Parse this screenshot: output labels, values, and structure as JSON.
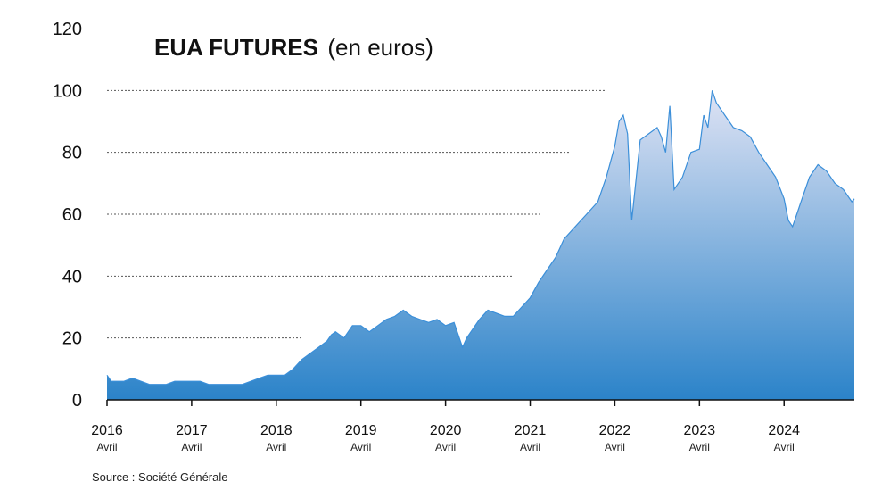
{
  "chart_data": {
    "type": "area",
    "title": "EUA FUTURES",
    "subtitle": "(en euros)",
    "source": "Source : Société Générale",
    "ylim": [
      0,
      120
    ],
    "xlim": [
      2016.0,
      2024.83
    ],
    "y_ticks": [
      "0",
      "20",
      "40",
      "60",
      "80",
      "100",
      "120"
    ],
    "x_ticks": [
      {
        "value": 2016,
        "label": "2016",
        "sublabel": "Avril"
      },
      {
        "value": 2017,
        "label": "2017",
        "sublabel": "Avril"
      },
      {
        "value": 2018,
        "label": "2018",
        "sublabel": "Avril"
      },
      {
        "value": 2019,
        "label": "2019",
        "sublabel": "Avril"
      },
      {
        "value": 2020,
        "label": "2020",
        "sublabel": "Avril"
      },
      {
        "value": 2021,
        "label": "2021",
        "sublabel": "Avril"
      },
      {
        "value": 2022,
        "label": "2022",
        "sublabel": "Avril"
      },
      {
        "value": 2023,
        "label": "2023",
        "sublabel": "Avril"
      },
      {
        "value": 2024,
        "label": "2024",
        "sublabel": "Avril"
      }
    ],
    "grid": "dotted horizontal lines, partial",
    "colors": {
      "line": "#3b8fd9",
      "fill_top": "#dfe3f4",
      "fill_bottom": "#2b83c9"
    },
    "series": [
      {
        "x": [
          2016.0,
          2016.05,
          2016.1,
          2016.2,
          2016.3,
          2016.4,
          2016.5,
          2016.6,
          2016.7,
          2016.8,
          2016.9,
          2017.0,
          2017.1,
          2017.2,
          2017.3,
          2017.4,
          2017.5,
          2017.6,
          2017.7,
          2017.8,
          2017.9,
          2018.0,
          2018.1,
          2018.2,
          2018.3,
          2018.4,
          2018.5,
          2018.6,
          2018.65,
          2018.7,
          2018.8,
          2018.9,
          2019.0,
          2019.1,
          2019.2,
          2019.3,
          2019.4,
          2019.5,
          2019.6,
          2019.7,
          2019.8,
          2019.9,
          2020.0,
          2020.1,
          2020.2,
          2020.25,
          2020.3,
          2020.4,
          2020.5,
          2020.6,
          2020.7,
          2020.8,
          2020.9,
          2021.0,
          2021.1,
          2021.2,
          2021.3,
          2021.4,
          2021.5,
          2021.6,
          2021.7,
          2021.8,
          2021.9,
          2022.0,
          2022.05,
          2022.1,
          2022.15,
          2022.2,
          2022.3,
          2022.4,
          2022.5,
          2022.55,
          2022.6,
          2022.65,
          2022.7,
          2022.8,
          2022.9,
          2023.0,
          2023.05,
          2023.1,
          2023.15,
          2023.2,
          2023.3,
          2023.4,
          2023.5,
          2023.6,
          2023.7,
          2023.8,
          2023.9,
          2024.0,
          2024.05,
          2024.1,
          2024.15,
          2024.2,
          2024.3,
          2024.4,
          2024.5,
          2024.6,
          2024.7,
          2024.8,
          2024.83
        ],
        "y": [
          8,
          6,
          6,
          6,
          7,
          6,
          5,
          5,
          5,
          6,
          6,
          6,
          6,
          5,
          5,
          5,
          5,
          5,
          6,
          7,
          8,
          8,
          8,
          10,
          13,
          15,
          17,
          19,
          21,
          22,
          20,
          24,
          24,
          22,
          24,
          26,
          27,
          29,
          27,
          26,
          25,
          26,
          24,
          25,
          17,
          20,
          22,
          26,
          29,
          28,
          27,
          27,
          30,
          33,
          38,
          42,
          46,
          52,
          55,
          58,
          61,
          64,
          72,
          82,
          90,
          92,
          86,
          58,
          84,
          86,
          88,
          85,
          80,
          95,
          68,
          72,
          80,
          81,
          92,
          88,
          100,
          96,
          92,
          88,
          87,
          85,
          80,
          76,
          72,
          65,
          58,
          56,
          60,
          64,
          72,
          76,
          74,
          70,
          68,
          64,
          65
        ]
      }
    ]
  }
}
